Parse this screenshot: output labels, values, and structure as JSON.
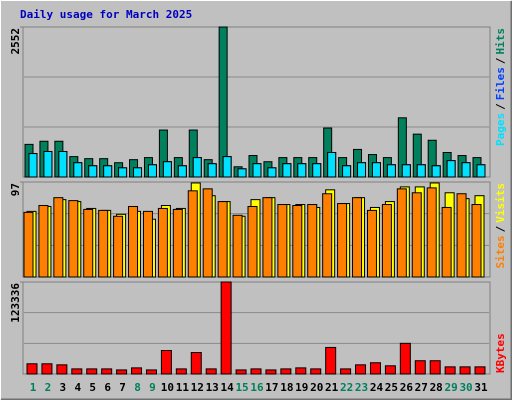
{
  "chart_data": [
    {
      "type": "bar",
      "title": "Daily usage for March 2025",
      "title_color": "#0000c0",
      "ylim": [
        0,
        2552
      ],
      "yticks": [
        2552
      ],
      "legend_separator": "/",
      "series": [
        {
          "name": "Hits",
          "color": "#00805c",
          "values": [
            555,
            608,
            608,
            347,
            312,
            312,
            243,
            295,
            330,
            799,
            330,
            799,
            295,
            2552,
            174,
            365,
            260,
            330,
            330,
            330,
            833,
            330,
            469,
            382,
            330,
            1007,
            729,
            625,
            417,
            365,
            330
          ]
        },
        {
          "name": "Files",
          "color": "#0040ff",
          "values": [
            399,
            434,
            434,
            243,
            191,
            191,
            156,
            156,
            208,
            260,
            191,
            330,
            226,
            347,
            139,
            226,
            156,
            226,
            226,
            226,
            417,
            191,
            243,
            243,
            208,
            208,
            208,
            191,
            278,
            243,
            208
          ]
        },
        {
          "name": "Pages",
          "color": "#00e0ff",
          "values": [
            399,
            434,
            434,
            243,
            191,
            191,
            156,
            156,
            208,
            260,
            191,
            330,
            226,
            347,
            139,
            226,
            156,
            226,
            226,
            226,
            417,
            191,
            243,
            243,
            208,
            208,
            208,
            191,
            278,
            243,
            208
          ]
        }
      ]
    },
    {
      "type": "bar",
      "ylim": [
        0,
        97
      ],
      "yticks": [
        97
      ],
      "legend_separator": "/",
      "series": [
        {
          "name": "Visits",
          "color": "#ffff00",
          "values": [
            67,
            72,
            79,
            77,
            70,
            68,
            64,
            67,
            59,
            73,
            70,
            96,
            83,
            77,
            62,
            79,
            81,
            74,
            74,
            71,
            89,
            75,
            81,
            71,
            77,
            92,
            92,
            96,
            86,
            80,
            83
          ]
        },
        {
          "name": "Sites",
          "color": "#ff8000",
          "values": [
            66,
            73,
            81,
            78,
            69,
            68,
            62,
            72,
            67,
            70,
            69,
            88,
            90,
            77,
            63,
            72,
            81,
            74,
            73,
            74,
            85,
            75,
            81,
            68,
            74,
            90,
            86,
            91,
            71,
            85,
            74
          ]
        }
      ]
    },
    {
      "type": "bar",
      "ylim": [
        0,
        123336
      ],
      "yticks": [
        123336
      ],
      "categories": [
        "1",
        "2",
        "3",
        "4",
        "5",
        "6",
        "7",
        "8",
        "9",
        "10",
        "11",
        "12",
        "13",
        "14",
        "15",
        "16",
        "17",
        "18",
        "19",
        "20",
        "21",
        "22",
        "23",
        "24",
        "25",
        "26",
        "27",
        "28",
        "29",
        "30",
        "31"
      ],
      "category_colors": [
        "#00805c",
        "#00805c",
        "#000000",
        "#000000",
        "#000000",
        "#000000",
        "#000000",
        "#00805c",
        "#00805c",
        "#000000",
        "#000000",
        "#000000",
        "#000000",
        "#000000",
        "#00805c",
        "#00805c",
        "#000000",
        "#000000",
        "#000000",
        "#000000",
        "#000000",
        "#00805c",
        "#00805c",
        "#000000",
        "#000000",
        "#000000",
        "#000000",
        "#000000",
        "#00805c",
        "#00805c",
        "#000000"
      ],
      "series": [
        {
          "name": "KBytes",
          "color": "#ff0000",
          "values": [
            13700,
            13700,
            12300,
            6850,
            6850,
            6850,
            5480,
            8220,
            5480,
            31500,
            6850,
            28800,
            6850,
            123336,
            5480,
            6850,
            5480,
            6850,
            8220,
            6850,
            35600,
            6850,
            12300,
            15100,
            11000,
            41100,
            17800,
            17800,
            9590,
            9590,
            9590
          ]
        }
      ]
    }
  ]
}
